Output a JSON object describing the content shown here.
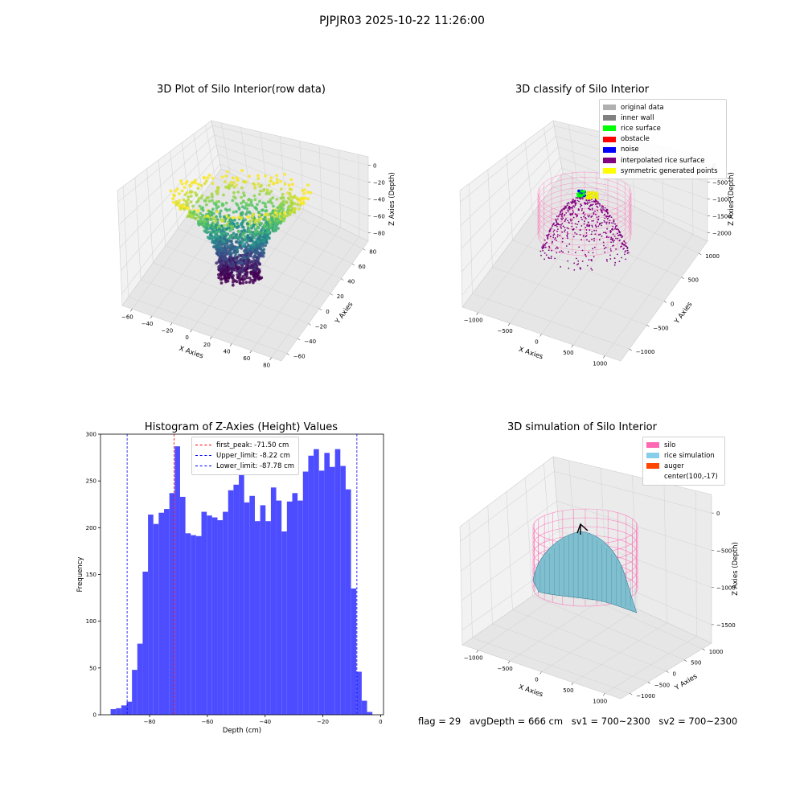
{
  "suptitle": "PJPJR03 2025-10-22 11:26:00",
  "footer": {
    "flag": "flag = 29",
    "avg": "avgDepth = 666 cm",
    "sv1": "sv1 = 700~2300",
    "sv2": "sv2 = 700~2300"
  },
  "panels": {
    "raw": {
      "title": "3D Plot of Silo Interior(row data)",
      "xlabel": "X Axies",
      "ylabel": "Y Axies",
      "zlabel": "Z Axies (Depth)",
      "xticks": [
        "−60",
        "−40",
        "−20",
        "0",
        "20",
        "40",
        "60",
        "80"
      ],
      "yticks": [
        "−60",
        "−40",
        "−20",
        "0",
        "20",
        "40",
        "60",
        "80"
      ],
      "zticks": [
        "0",
        "−20",
        "−40",
        "−60",
        "−80"
      ],
      "colormap": "viridis"
    },
    "classify": {
      "title": "3D classify of Silo Interior",
      "xlabel": "X Axies",
      "ylabel": "Y Axies",
      "zlabel": "Z Axies (Depth)",
      "xticks": [
        "−1000",
        "−500",
        "0",
        "500",
        "1000"
      ],
      "yticks": [
        "−1000",
        "−500",
        "0",
        "500",
        "1000"
      ],
      "zticks": [
        "0",
        "−500",
        "−1000",
        "−1500",
        "−2000"
      ],
      "legend": [
        {
          "label": "original data",
          "color": "#b0b0b0"
        },
        {
          "label": "inner wall",
          "color": "#808080"
        },
        {
          "label": "rice surface",
          "color": "#00ff00"
        },
        {
          "label": "obstacle",
          "color": "#ff0000"
        },
        {
          "label": "noise",
          "color": "#0000ff"
        },
        {
          "label": "interpolated rice surface",
          "color": "#800080"
        },
        {
          "label": "symmetric generated points",
          "color": "#ffff00"
        }
      ]
    },
    "histogram": {
      "title": "Histogram of Z-Axies (Height) Values",
      "xlabel": "Depth (cm)",
      "ylabel": "Frequency",
      "xticks": [
        "−80",
        "−60",
        "−40",
        "−20",
        "0"
      ],
      "yticks": [
        "0",
        "50",
        "100",
        "150",
        "200",
        "250",
        "300"
      ],
      "legend": [
        {
          "label": "first_peak: -71.50 cm",
          "color": "#ff0000"
        },
        {
          "label": "Upper_limit: -8.22 cm",
          "color": "#0000ff"
        },
        {
          "label": "Lower_limit: -87.78 cm",
          "color": "#0000ff"
        }
      ]
    },
    "simulation": {
      "title": "3D simulation of Silo Interior",
      "xlabel": "X Axies",
      "ylabel": "Y Axies",
      "zlabel": "Z Axies (Depth)",
      "xticks": [
        "−1000",
        "−500",
        "0",
        "500",
        "1000"
      ],
      "yticks": [
        "−1000",
        "−500",
        "0",
        "500",
        "1000"
      ],
      "zticks": [
        "0",
        "−500",
        "−1000",
        "−1500"
      ],
      "legend": [
        {
          "label": "silo",
          "color": "#ff69b4"
        },
        {
          "label": "rice simulation",
          "color": "#87ceeb"
        },
        {
          "label": "auger",
          "color": "#ff4500"
        },
        {
          "label": "center(100,-17)",
          "color": ""
        }
      ]
    }
  },
  "chart_data": [
    {
      "type": "scatter",
      "title": "3D Plot of Silo Interior(row data)",
      "xlabel": "X Axies",
      "ylabel": "Y Axies",
      "zlabel": "Z Axies (Depth)",
      "xlim": [
        -70,
        85
      ],
      "ylim": [
        -65,
        85
      ],
      "zlim": [
        -95,
        0
      ]
    },
    {
      "type": "scatter",
      "title": "3D classify of Silo Interior",
      "xlabel": "X Axies",
      "ylabel": "Y Axies",
      "zlabel": "Z Axies (Depth)",
      "xlim": [
        -1150,
        1150
      ],
      "ylim": [
        -1150,
        1150
      ],
      "zlim": [
        -2100,
        0
      ],
      "series": [
        {
          "name": "original data"
        },
        {
          "name": "inner wall"
        },
        {
          "name": "rice surface"
        },
        {
          "name": "obstacle"
        },
        {
          "name": "noise"
        },
        {
          "name": "interpolated rice surface"
        },
        {
          "name": "symmetric generated points"
        }
      ]
    },
    {
      "type": "bar",
      "title": "Histogram of Z-Axies (Height) Values",
      "xlabel": "Depth (cm)",
      "ylabel": "Frequency",
      "xlim": [
        -97,
        1
      ],
      "ylim": [
        0,
        300
      ],
      "bin_start": -93.5,
      "bin_width": 1.85,
      "values": [
        6,
        7,
        10,
        14,
        48,
        76,
        153,
        214,
        204,
        216,
        220,
        237,
        287,
        233,
        194,
        192,
        191,
        217,
        213,
        211,
        208,
        217,
        240,
        246,
        257,
        227,
        234,
        207,
        224,
        207,
        243,
        229,
        196,
        228,
        237,
        229,
        260,
        277,
        284,
        261,
        280,
        265,
        284,
        266,
        241,
        135,
        46,
        15,
        3
      ],
      "vlines": [
        {
          "name": "first_peak: -71.50 cm",
          "x": -71.5,
          "color": "#ff0000"
        },
        {
          "name": "Upper_limit: -8.22 cm",
          "x": -8.22,
          "color": "#0000ff"
        },
        {
          "name": "Lower_limit: -87.78 cm",
          "x": -87.78,
          "color": "#0000ff"
        }
      ]
    },
    {
      "type": "area",
      "title": "3D simulation of Silo Interior",
      "xlabel": "X Axies",
      "ylabel": "Y Axies",
      "zlabel": "Z Axies (Depth)",
      "xlim": [
        -1150,
        1150
      ],
      "ylim": [
        -1150,
        1150
      ],
      "zlim": [
        -1700,
        200
      ],
      "series": [
        {
          "name": "silo"
        },
        {
          "name": "rice simulation"
        },
        {
          "name": "auger"
        }
      ]
    }
  ]
}
